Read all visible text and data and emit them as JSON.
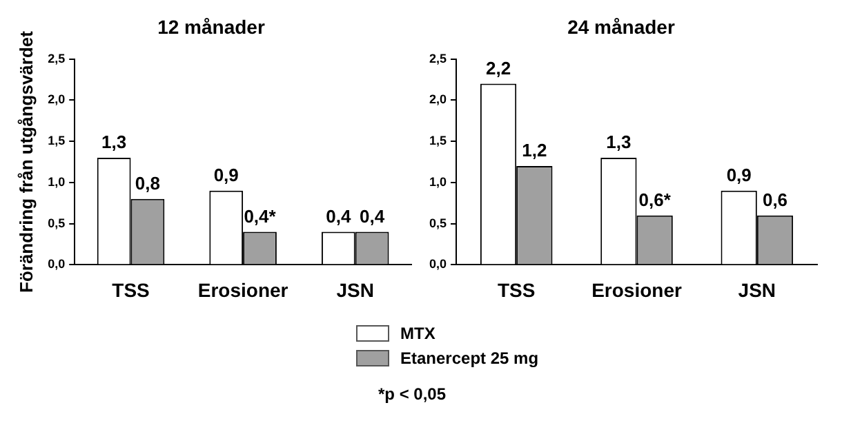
{
  "chart_data": [
    {
      "type": "bar",
      "title": "12 månader",
      "ylabel": "Förändring från utgångsvärdet",
      "categories": [
        "TSS",
        "Erosioner",
        "JSN"
      ],
      "series": [
        {
          "name": "MTX",
          "color": "#ffffff",
          "values": [
            1.3,
            0.9,
            0.4
          ],
          "value_labels": [
            "1,3",
            "0,9",
            "0,4"
          ]
        },
        {
          "name": "Etanercept 25 mg",
          "color": "#a0a0a0",
          "values": [
            0.8,
            0.4,
            0.4
          ],
          "value_labels": [
            "0,8",
            "0,4*",
            "0,4"
          ]
        }
      ],
      "ylim": [
        0,
        2.5
      ],
      "yticks": [
        {
          "value": 0,
          "label": "0,0"
        },
        {
          "value": 0.5,
          "label": "0,5"
        },
        {
          "value": 1,
          "label": "1,0"
        },
        {
          "value": 1.5,
          "label": "1,5"
        },
        {
          "value": 2,
          "label": "2,0"
        },
        {
          "value": 2.5,
          "label": "2,5"
        }
      ],
      "grid": false,
      "legend": "bottom",
      "annotations": [
        "*p < 0,05"
      ]
    },
    {
      "type": "bar",
      "title": "24 månader",
      "categories": [
        "TSS",
        "Erosioner",
        "JSN"
      ],
      "series": [
        {
          "color": "#ffffff",
          "values": [
            2.2,
            1.3,
            0.9
          ],
          "value_labels": [
            "2,2",
            "1,3",
            "0,9"
          ]
        },
        {
          "color": "#a0a0a0",
          "values": [
            1.2,
            0.6,
            0.6
          ],
          "value_labels": [
            "1,2",
            "0,6*",
            "0,6"
          ]
        }
      ],
      "ylim": [
        0,
        2.5
      ],
      "yticks": [
        {
          "value": 0,
          "label": "0,0"
        },
        {
          "value": 0.5,
          "label": "0,5"
        },
        {
          "value": 1,
          "label": "1,0"
        },
        {
          "value": 1.5,
          "label": "1,5"
        },
        {
          "value": 2,
          "label": "2,0"
        },
        {
          "value": 2.5,
          "label": "2,5"
        }
      ],
      "grid": false
    }
  ]
}
